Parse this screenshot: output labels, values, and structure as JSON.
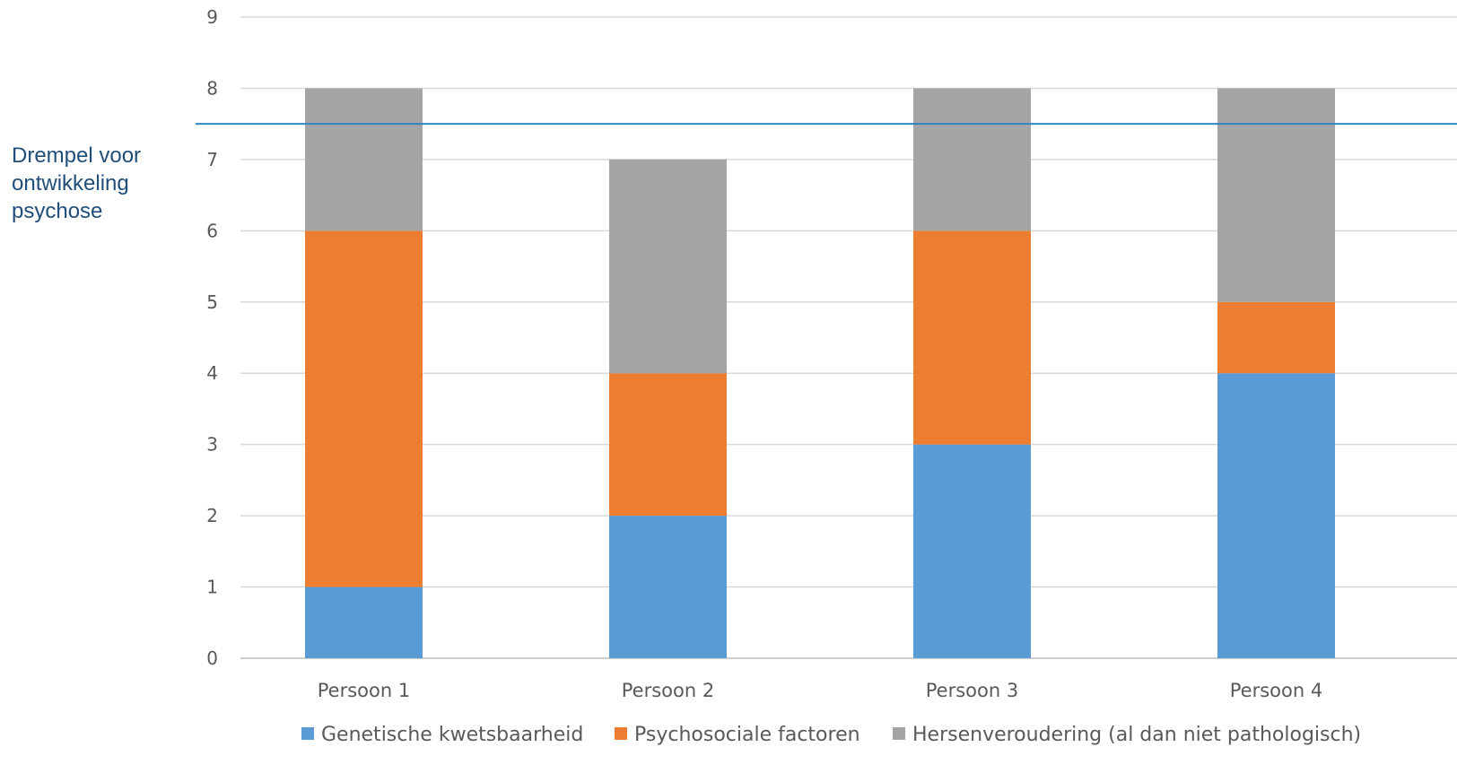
{
  "chart_data": {
    "type": "bar",
    "stacked": true,
    "categories": [
      "Persoon 1",
      "Persoon 2",
      "Persoon 3",
      "Persoon 4"
    ],
    "series": [
      {
        "name": "Genetische kwetsbaarheid",
        "values": [
          1,
          2,
          3,
          4
        ],
        "color": "#5b9bd5"
      },
      {
        "name": "Psychosociale factoren",
        "values": [
          5,
          2,
          3,
          1
        ],
        "color": "#ed7d31"
      },
      {
        "name": "Hersenveroudering (al dan niet pathologisch)",
        "values": [
          2,
          3,
          2,
          3
        ],
        "color": "#a5a5a5"
      }
    ],
    "ylim": [
      0,
      9
    ],
    "yticks": [
      0,
      1,
      2,
      3,
      4,
      5,
      6,
      7,
      8,
      9
    ],
    "grid": true,
    "legend_position": "bottom",
    "threshold": {
      "value": 7.5,
      "label": "Drempel voor\nontwikkeling\npsychose",
      "color": "#2e86c1"
    }
  }
}
